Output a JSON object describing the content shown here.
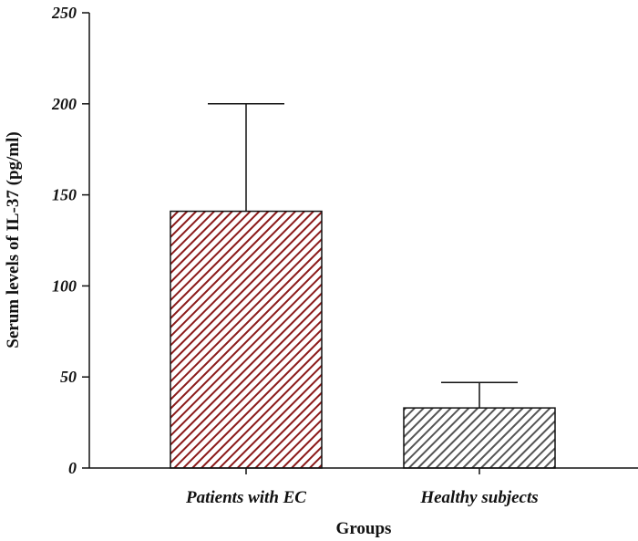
{
  "chart_data": {
    "type": "bar",
    "title": "",
    "xlabel": "Groups",
    "ylabel": "Serum levels of IL-37 (pg/ml)",
    "categories": [
      "Patients with EC",
      "Healthy subjects"
    ],
    "values": [
      141,
      33
    ],
    "error_upper": [
      200,
      47
    ],
    "ylim": [
      0,
      250
    ],
    "yticks": [
      0,
      50,
      100,
      150,
      200,
      250
    ],
    "ytick_labels": [
      "0",
      "50",
      "100",
      "150",
      "200",
      "250"
    ],
    "grid": false,
    "legend": "none",
    "bar_colors": [
      "#8b1a1a",
      "#555555"
    ],
    "bar_pattern": "diagonal-hatch"
  }
}
